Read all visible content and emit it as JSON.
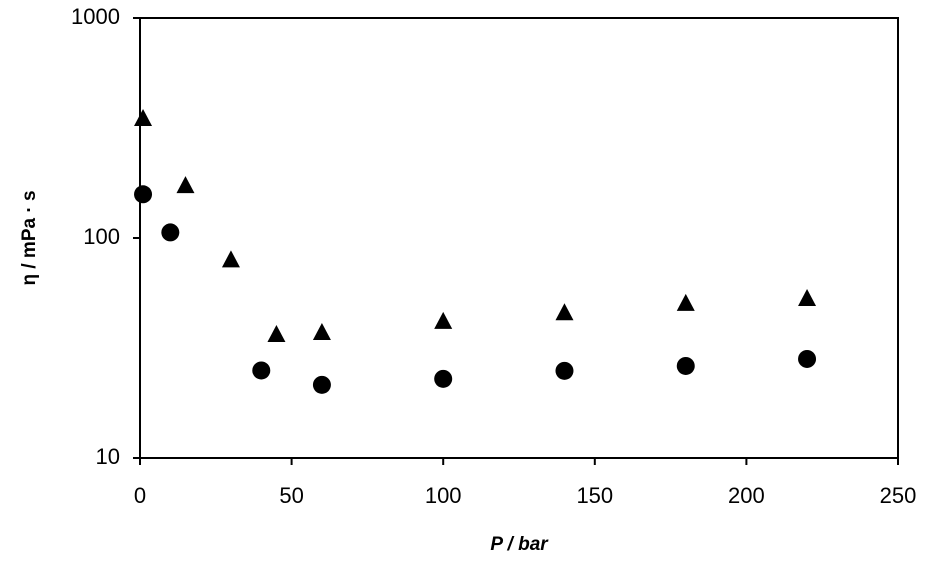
{
  "chart_data": {
    "type": "scatter",
    "x_label": "P / bar",
    "y_label": "η / mPa · s",
    "xlim": [
      0,
      250
    ],
    "xticks": [
      0,
      50,
      100,
      150,
      200,
      250
    ],
    "ylim": [
      10,
      1000
    ],
    "yticks": [
      10,
      100,
      1000
    ],
    "y_log": true,
    "series": [
      {
        "marker": "circle",
        "color": "#000000",
        "x": [
          1,
          10,
          40,
          60,
          100,
          140,
          180,
          220
        ],
        "values": [
          158,
          106,
          25,
          21.5,
          22.9,
          24.9,
          26.2,
          28.2
        ]
      },
      {
        "marker": "triangle",
        "color": "#000000",
        "x": [
          1,
          15,
          30,
          45,
          60,
          100,
          140,
          180,
          220
        ],
        "values": [
          351,
          174,
          80,
          36.6,
          37.4,
          42,
          46,
          50.7,
          53.4
        ]
      }
    ]
  }
}
